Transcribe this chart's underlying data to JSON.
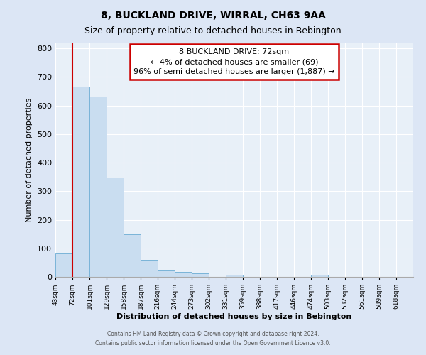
{
  "title": "8, BUCKLAND DRIVE, WIRRAL, CH63 9AA",
  "subtitle": "Size of property relative to detached houses in Bebington",
  "xlabel": "Distribution of detached houses by size in Bebington",
  "ylabel": "Number of detached properties",
  "bin_labels": [
    "43sqm",
    "72sqm",
    "101sqm",
    "129sqm",
    "158sqm",
    "187sqm",
    "216sqm",
    "244sqm",
    "273sqm",
    "302sqm",
    "331sqm",
    "359sqm",
    "388sqm",
    "417sqm",
    "446sqm",
    "474sqm",
    "503sqm",
    "532sqm",
    "561sqm",
    "589sqm",
    "618sqm"
  ],
  "bar_values": [
    82,
    665,
    630,
    348,
    148,
    60,
    25,
    18,
    13,
    0,
    8,
    0,
    0,
    0,
    0,
    8,
    0,
    0,
    0,
    0,
    0
  ],
  "bar_color": "#c9ddf0",
  "bar_edge_color": "#7ab4d8",
  "highlight_index": 1,
  "highlight_color": "#cc0000",
  "annotation_line1": "8 BUCKLAND DRIVE: 72sqm",
  "annotation_line2": "← 4% of detached houses are smaller (69)",
  "annotation_line3": "96% of semi-detached houses are larger (1,887) →",
  "annotation_box_color": "#cc0000",
  "ylim": [
    0,
    820
  ],
  "yticks": [
    0,
    100,
    200,
    300,
    400,
    500,
    600,
    700,
    800
  ],
  "footer_line1": "Contains HM Land Registry data © Crown copyright and database right 2024.",
  "footer_line2": "Contains public sector information licensed under the Open Government Licence v3.0.",
  "bg_color": "#dce6f5",
  "plot_bg_color": "#e8f0f8",
  "grid_color": "#ffffff",
  "title_fontsize": 10,
  "subtitle_fontsize": 9,
  "xlabel_fontsize": 8,
  "ylabel_fontsize": 8
}
